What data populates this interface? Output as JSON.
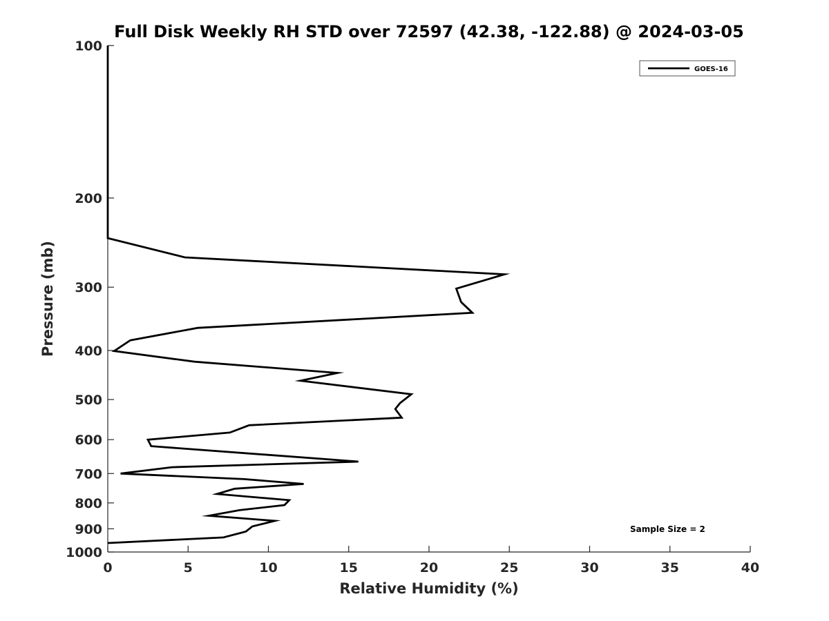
{
  "chart_data": {
    "type": "line",
    "title": "Full Disk Weekly RH STD over 72597 (42.38, -122.88) @ 2024-03-05",
    "xlabel": "Relative Humidity (%)",
    "ylabel": "Pressure (mb)",
    "xlim": [
      0,
      40
    ],
    "ylim": [
      100,
      1000
    ],
    "y_scale": "log",
    "y_reversed": true,
    "grid": false,
    "legend_position": "top-right",
    "x_ticks": [
      "0",
      "5",
      "10",
      "15",
      "20",
      "25",
      "30",
      "35",
      "40"
    ],
    "y_ticks": [
      "100",
      "200",
      "300",
      "400",
      "500",
      "600",
      "700",
      "800",
      "900",
      "1000"
    ],
    "annotation": "Sample Size = 2",
    "series": [
      {
        "name": "GOES-16",
        "color": "#000000",
        "x": [
          0,
          0,
          0,
          0,
          4.8,
          24.7,
          21.7,
          22.0,
          22.7,
          5.6,
          1.4,
          0.4,
          5.4,
          14.3,
          12.0,
          18.9,
          18.2,
          17.9,
          18.3,
          8.8,
          7.6,
          2.5,
          2.7,
          15.6,
          4.0,
          0.8,
          8.5,
          12.2,
          7.9,
          6.8,
          11.3,
          11.0,
          8.2,
          6.3,
          10.4,
          9.0,
          8.6,
          7.2,
          0
        ],
        "y": [
          100,
          200,
          220,
          240,
          262,
          283,
          302,
          321,
          337,
          361,
          382,
          401,
          421,
          443,
          459,
          488,
          508,
          522,
          543,
          562,
          581,
          600,
          618,
          663,
          680,
          700,
          718,
          734,
          750,
          768,
          790,
          808,
          827,
          848,
          868,
          890,
          911,
          936,
          960
        ]
      }
    ]
  }
}
